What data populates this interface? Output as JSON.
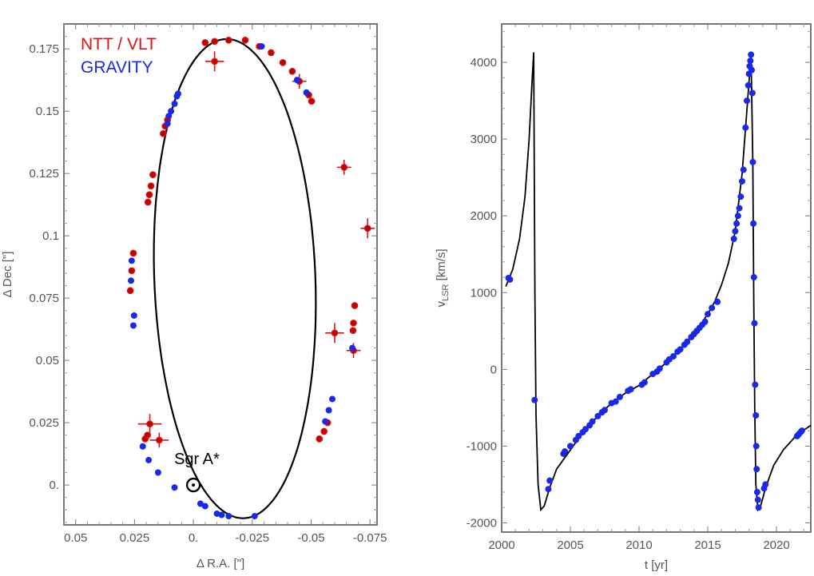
{
  "chart_data": [
    {
      "type": "scatter",
      "xlabel": "Δ R.A. [\"]",
      "ylabel": "Δ Dec [\"]",
      "xlim": [
        0.055,
        -0.078
      ],
      "ylim": [
        -0.016,
        0.185
      ],
      "x_ticks": [
        0.05,
        0.025,
        0.0,
        -0.025,
        -0.05,
        -0.075
      ],
      "x_tick_labels": [
        "0.05",
        "0.025",
        "0.",
        "-0.025",
        "-0.05",
        "-0.075"
      ],
      "y_ticks": [
        0.0,
        0.025,
        0.05,
        0.075,
        0.1,
        0.125,
        0.15,
        0.175
      ],
      "y_tick_labels": [
        "0.",
        "0.025",
        "0.05",
        "0.075",
        "0.1",
        "0.125",
        "0.15",
        "0.175"
      ],
      "grid": false,
      "legend_position": "top-left",
      "legend": [
        {
          "name": "NTT / VLT",
          "color": "#e01010"
        },
        {
          "name": "GRAVITY",
          "color": "#1a28e8"
        }
      ],
      "annotation": {
        "text": "Sgr A*",
        "x": 0.0,
        "y": 0.0
      },
      "orbit": {
        "center": [
          -0.0176,
          0.0828
        ],
        "semi_ra": 0.0342,
        "semi_dec": 0.0962
      },
      "series": [
        {
          "name": "NTT / VLT",
          "color": "#e01010",
          "points": [
            {
              "x": 0.0185,
              "y": 0.0245,
              "ex": 0.005,
              "ey": 0.004
            },
            {
              "x": 0.0145,
              "y": 0.018,
              "ex": 0.004,
              "ey": 0.003
            },
            {
              "x": 0.0205,
              "y": 0.0185
            },
            {
              "x": 0.0195,
              "y": 0.02
            },
            {
              "x": 0.0268,
              "y": 0.078
            },
            {
              "x": 0.0262,
              "y": 0.086
            },
            {
              "x": 0.0255,
              "y": 0.093
            },
            {
              "x": 0.0193,
              "y": 0.1135
            },
            {
              "x": 0.0187,
              "y": 0.1165
            },
            {
              "x": 0.018,
              "y": 0.12
            },
            {
              "x": 0.0172,
              "y": 0.1245
            },
            {
              "x": 0.0128,
              "y": 0.141
            },
            {
              "x": 0.012,
              "y": 0.144
            },
            {
              "x": 0.011,
              "y": 0.1465
            },
            {
              "x": -0.005,
              "y": 0.1775
            },
            {
              "x": -0.009,
              "y": 0.178
            },
            {
              "x": -0.015,
              "y": 0.1785
            },
            {
              "x": -0.022,
              "y": 0.1785
            },
            {
              "x": -0.028,
              "y": 0.176
            },
            {
              "x": -0.033,
              "y": 0.1735
            },
            {
              "x": -0.038,
              "y": 0.1695
            },
            {
              "x": -0.042,
              "y": 0.166
            },
            {
              "x": -0.045,
              "y": 0.162,
              "ex": 0.003,
              "ey": 0.003
            },
            {
              "x": -0.049,
              "y": 0.1565
            },
            {
              "x": -0.0502,
              "y": 0.154
            },
            {
              "x": -0.009,
              "y": 0.17,
              "ex": 0.004,
              "ey": 0.004
            },
            {
              "x": -0.064,
              "y": 0.1275,
              "ex": 0.003,
              "ey": 0.003
            },
            {
              "x": -0.074,
              "y": 0.103,
              "ex": 0.003,
              "ey": 0.004
            },
            {
              "x": -0.0685,
              "y": 0.072
            },
            {
              "x": -0.068,
              "y": 0.065
            },
            {
              "x": -0.0678,
              "y": 0.062
            },
            {
              "x": -0.06,
              "y": 0.061,
              "ex": 0.004,
              "ey": 0.004
            },
            {
              "x": -0.068,
              "y": 0.054,
              "ex": 0.003,
              "ey": 0.003
            },
            {
              "x": -0.057,
              "y": 0.025
            },
            {
              "x": -0.0555,
              "y": 0.0215
            },
            {
              "x": -0.0535,
              "y": 0.0185
            }
          ]
        },
        {
          "name": "GRAVITY",
          "color": "#1a28e8",
          "points": [
            {
              "x": 0.0215,
              "y": 0.0155
            },
            {
              "x": 0.019,
              "y": 0.01
            },
            {
              "x": 0.015,
              "y": 0.005
            },
            {
              "x": 0.008,
              "y": -0.001
            },
            {
              "x": -0.003,
              "y": -0.0075
            },
            {
              "x": -0.005,
              "y": -0.0085
            },
            {
              "x": -0.01,
              "y": -0.0115
            },
            {
              "x": -0.012,
              "y": -0.012
            },
            {
              "x": -0.015,
              "y": -0.0125
            },
            {
              "x": -0.026,
              "y": -0.0125
            },
            {
              "x": 0.0262,
              "y": 0.09
            },
            {
              "x": 0.0265,
              "y": 0.082
            },
            {
              "x": 0.0252,
              "y": 0.068
            },
            {
              "x": 0.0255,
              "y": 0.064
            },
            {
              "x": 0.011,
              "y": 0.145
            },
            {
              "x": 0.0105,
              "y": 0.148
            },
            {
              "x": 0.0095,
              "y": 0.15
            },
            {
              "x": 0.008,
              "y": 0.153
            },
            {
              "x": 0.007,
              "y": 0.156
            },
            {
              "x": 0.0065,
              "y": 0.157
            },
            {
              "x": -0.029,
              "y": 0.176
            },
            {
              "x": -0.048,
              "y": 0.1575
            },
            {
              "x": -0.044,
              "y": 0.1625
            },
            {
              "x": -0.0675,
              "y": 0.055
            },
            {
              "x": -0.059,
              "y": 0.0345
            },
            {
              "x": -0.0575,
              "y": 0.03
            },
            {
              "x": -0.056,
              "y": 0.0255
            }
          ]
        }
      ]
    },
    {
      "type": "scatter",
      "xlabel": "t [yr]",
      "ylabel": "v_LSR [km/s]",
      "ylabel_main": "v",
      "ylabel_sub": "LSR",
      "ylabel_unit": " [km/s]",
      "xlim": [
        2000,
        2022.5
      ],
      "ylim": [
        -2120,
        4500
      ],
      "x_ticks": [
        2000,
        2005,
        2010,
        2015,
        2020
      ],
      "x_tick_labels": [
        "2000",
        "2005",
        "2010",
        "2015",
        "2020"
      ],
      "y_ticks": [
        -2000,
        -1000,
        0,
        1000,
        2000,
        3000,
        4000
      ],
      "y_tick_labels": [
        "-2000",
        "-1000",
        "0",
        "1000",
        "2000",
        "3000",
        "4000"
      ],
      "grid": false,
      "model_curve": [
        [
          2000.3,
          1080
        ],
        [
          2000.8,
          1300
        ],
        [
          2001.3,
          1700
        ],
        [
          2001.7,
          2250
        ],
        [
          2002.0,
          3000
        ],
        [
          2002.2,
          3700
        ],
        [
          2002.33,
          4130
        ],
        [
          2002.42,
          1000
        ],
        [
          2002.5,
          -600
        ],
        [
          2002.65,
          -1500
        ],
        [
          2002.85,
          -1830
        ],
        [
          2003.1,
          -1780
        ],
        [
          2003.5,
          -1540
        ],
        [
          2004.0,
          -1300
        ],
        [
          2005.0,
          -1050
        ],
        [
          2006.0,
          -800
        ],
        [
          2007.0,
          -610
        ],
        [
          2008.0,
          -440
        ],
        [
          2009.0,
          -310
        ],
        [
          2010.0,
          -210
        ],
        [
          2011.0,
          -60
        ],
        [
          2012.0,
          90
        ],
        [
          2013.0,
          260
        ],
        [
          2014.0,
          460
        ],
        [
          2015.0,
          720
        ],
        [
          2015.5,
          880
        ],
        [
          2016.0,
          1100
        ],
        [
          2016.5,
          1380
        ],
        [
          2017.0,
          1800
        ],
        [
          2017.5,
          2550
        ],
        [
          2017.9,
          3500
        ],
        [
          2018.15,
          4100
        ],
        [
          2018.28,
          2700
        ],
        [
          2018.35,
          900
        ],
        [
          2018.42,
          -500
        ],
        [
          2018.5,
          -1500
        ],
        [
          2018.65,
          -1830
        ],
        [
          2018.85,
          -1780
        ],
        [
          2019.2,
          -1550
        ],
        [
          2019.8,
          -1250
        ],
        [
          2020.5,
          -1050
        ],
        [
          2021.5,
          -850
        ],
        [
          2022.5,
          -730
        ]
      ],
      "points": [
        [
          2000.5,
          1190
        ],
        [
          2000.6,
          1170
        ],
        [
          2002.4,
          -400
        ],
        [
          2003.4,
          -1560
        ],
        [
          2003.5,
          -1450
        ],
        [
          2004.5,
          -1100
        ],
        [
          2004.6,
          -1070
        ],
        [
          2005.0,
          -1000
        ],
        [
          2005.4,
          -920
        ],
        [
          2005.6,
          -870
        ],
        [
          2005.9,
          -820
        ],
        [
          2006.1,
          -780
        ],
        [
          2006.4,
          -730
        ],
        [
          2006.6,
          -680
        ],
        [
          2007.0,
          -610
        ],
        [
          2007.3,
          -560
        ],
        [
          2007.5,
          -530
        ],
        [
          2008.0,
          -440
        ],
        [
          2008.3,
          -420
        ],
        [
          2008.6,
          -360
        ],
        [
          2009.2,
          -280
        ],
        [
          2009.4,
          -260
        ],
        [
          2010.2,
          -200
        ],
        [
          2010.4,
          -170
        ],
        [
          2011.0,
          -60
        ],
        [
          2011.3,
          -30
        ],
        [
          2011.5,
          10
        ],
        [
          2012.0,
          90
        ],
        [
          2012.2,
          130
        ],
        [
          2012.5,
          170
        ],
        [
          2012.8,
          230
        ],
        [
          2013.0,
          260
        ],
        [
          2013.3,
          320
        ],
        [
          2013.5,
          360
        ],
        [
          2013.8,
          420
        ],
        [
          2014.0,
          460
        ],
        [
          2014.2,
          500
        ],
        [
          2014.4,
          540
        ],
        [
          2014.6,
          580
        ],
        [
          2014.8,
          620
        ],
        [
          2015.0,
          720
        ],
        [
          2015.3,
          800
        ],
        [
          2015.7,
          880
        ],
        [
          2016.9,
          1700
        ],
        [
          2017.0,
          1800
        ],
        [
          2017.1,
          1900
        ],
        [
          2017.2,
          2000
        ],
        [
          2017.3,
          2100
        ],
        [
          2017.4,
          2250
        ],
        [
          2017.5,
          2450
        ],
        [
          2017.6,
          2600
        ],
        [
          2017.75,
          3150
        ],
        [
          2017.85,
          3500
        ],
        [
          2017.95,
          3700
        ],
        [
          2018.0,
          3850
        ],
        [
          2018.05,
          3950
        ],
        [
          2018.1,
          4020
        ],
        [
          2018.15,
          4100
        ],
        [
          2018.2,
          3900
        ],
        [
          2018.25,
          3600
        ],
        [
          2018.28,
          2700
        ],
        [
          2018.32,
          1900
        ],
        [
          2018.36,
          1200
        ],
        [
          2018.4,
          600
        ],
        [
          2018.45,
          -200
        ],
        [
          2018.5,
          -600
        ],
        [
          2018.53,
          -1000
        ],
        [
          2018.56,
          -1300
        ],
        [
          2018.6,
          -1600
        ],
        [
          2018.65,
          -1700
        ],
        [
          2018.7,
          -1800
        ],
        [
          2019.1,
          -1550
        ],
        [
          2019.2,
          -1500
        ],
        [
          2021.5,
          -870
        ],
        [
          2021.6,
          -850
        ],
        [
          2021.7,
          -830
        ],
        [
          2021.8,
          -810
        ],
        [
          2021.85,
          -800
        ]
      ]
    }
  ]
}
